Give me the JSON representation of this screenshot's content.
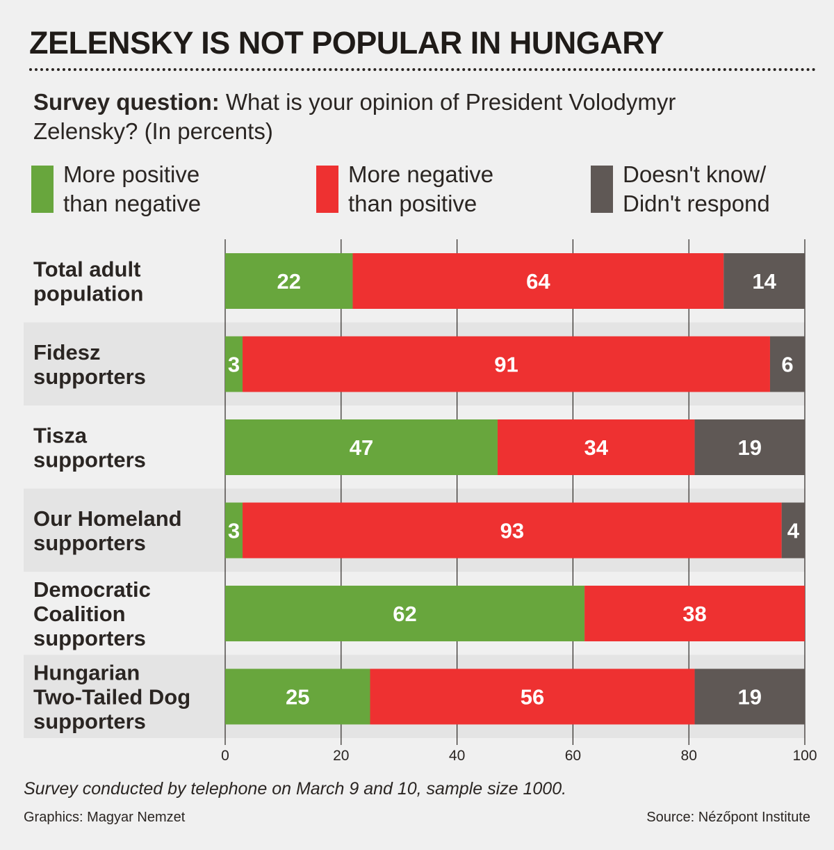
{
  "chart_data": {
    "type": "bar",
    "orientation": "horizontal",
    "stacked": true,
    "title": "ZELENSKY IS NOT POPULAR IN HUNGARY",
    "question_label": "Survey question:",
    "question_text": " What is your opinion of President Volodymyr Zelensky?  (In percents)",
    "categories": [
      [
        "Total adult",
        "population"
      ],
      [
        "Fidesz",
        "supporters"
      ],
      [
        "Tisza",
        "supporters"
      ],
      [
        "Our Homeland",
        "supporters"
      ],
      [
        "Democratic",
        "Coalition",
        "supporters"
      ],
      [
        "Hungarian",
        "Two-Tailed Dog",
        "supporters"
      ]
    ],
    "series": [
      {
        "name": "More positive than negative",
        "legend_lines": [
          "More positive",
          "than negative"
        ],
        "color": "#68a63d",
        "values": [
          22,
          3,
          47,
          3,
          62,
          25
        ]
      },
      {
        "name": "More negative than positive",
        "legend_lines": [
          "More negative",
          "than positive"
        ],
        "color": "#ee3131",
        "values": [
          64,
          91,
          34,
          93,
          38,
          56
        ]
      },
      {
        "name": "Doesn't know/Didn't respond",
        "legend_lines": [
          "Doesn't know/",
          "Didn't respond"
        ],
        "color": "#5f5855",
        "values": [
          14,
          6,
          19,
          4,
          0,
          19
        ]
      }
    ],
    "xlim": [
      0,
      100
    ],
    "xticks": [
      0,
      20,
      40,
      60,
      80,
      100
    ],
    "grid": true,
    "legend": "top",
    "footnote": "Survey conducted by telephone on March 9 and 10, sample size 1000.",
    "credit_left": "Graphics: Magyar Nemzet",
    "credit_right": "Source: Nézőpont Institute"
  }
}
